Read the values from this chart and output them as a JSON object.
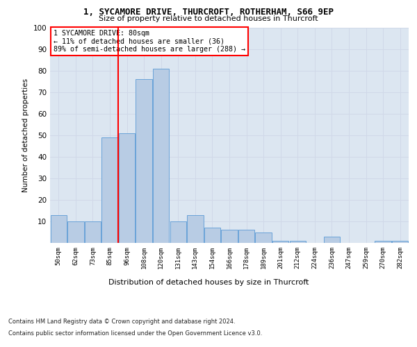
{
  "title1": "1, SYCAMORE DRIVE, THURCROFT, ROTHERHAM, S66 9EP",
  "title2": "Size of property relative to detached houses in Thurcroft",
  "xlabel": "Distribution of detached houses by size in Thurcroft",
  "ylabel": "Number of detached properties",
  "categories": [
    "50sqm",
    "62sqm",
    "73sqm",
    "85sqm",
    "96sqm",
    "108sqm",
    "120sqm",
    "131sqm",
    "143sqm",
    "154sqm",
    "166sqm",
    "178sqm",
    "189sqm",
    "201sqm",
    "212sqm",
    "224sqm",
    "236sqm",
    "247sqm",
    "259sqm",
    "270sqm",
    "282sqm"
  ],
  "values": [
    13,
    10,
    10,
    49,
    51,
    76,
    81,
    10,
    13,
    7,
    6,
    6,
    5,
    1,
    1,
    0,
    3,
    0,
    0,
    1,
    1
  ],
  "bar_color": "#b8cce4",
  "bar_edge_color": "#5b9bd5",
  "grid_color": "#d0d8e8",
  "background_color": "#dce6f1",
  "annotation_box_text": "1 SYCAMORE DRIVE: 80sqm\n← 11% of detached houses are smaller (36)\n89% of semi-detached houses are larger (288) →",
  "annotation_box_color": "#ff0000",
  "red_line_x": 3.5,
  "ylim": [
    0,
    100
  ],
  "yticks": [
    0,
    10,
    20,
    30,
    40,
    50,
    60,
    70,
    80,
    90,
    100
  ],
  "footer1": "Contains HM Land Registry data © Crown copyright and database right 2024.",
  "footer2": "Contains public sector information licensed under the Open Government Licence v3.0."
}
